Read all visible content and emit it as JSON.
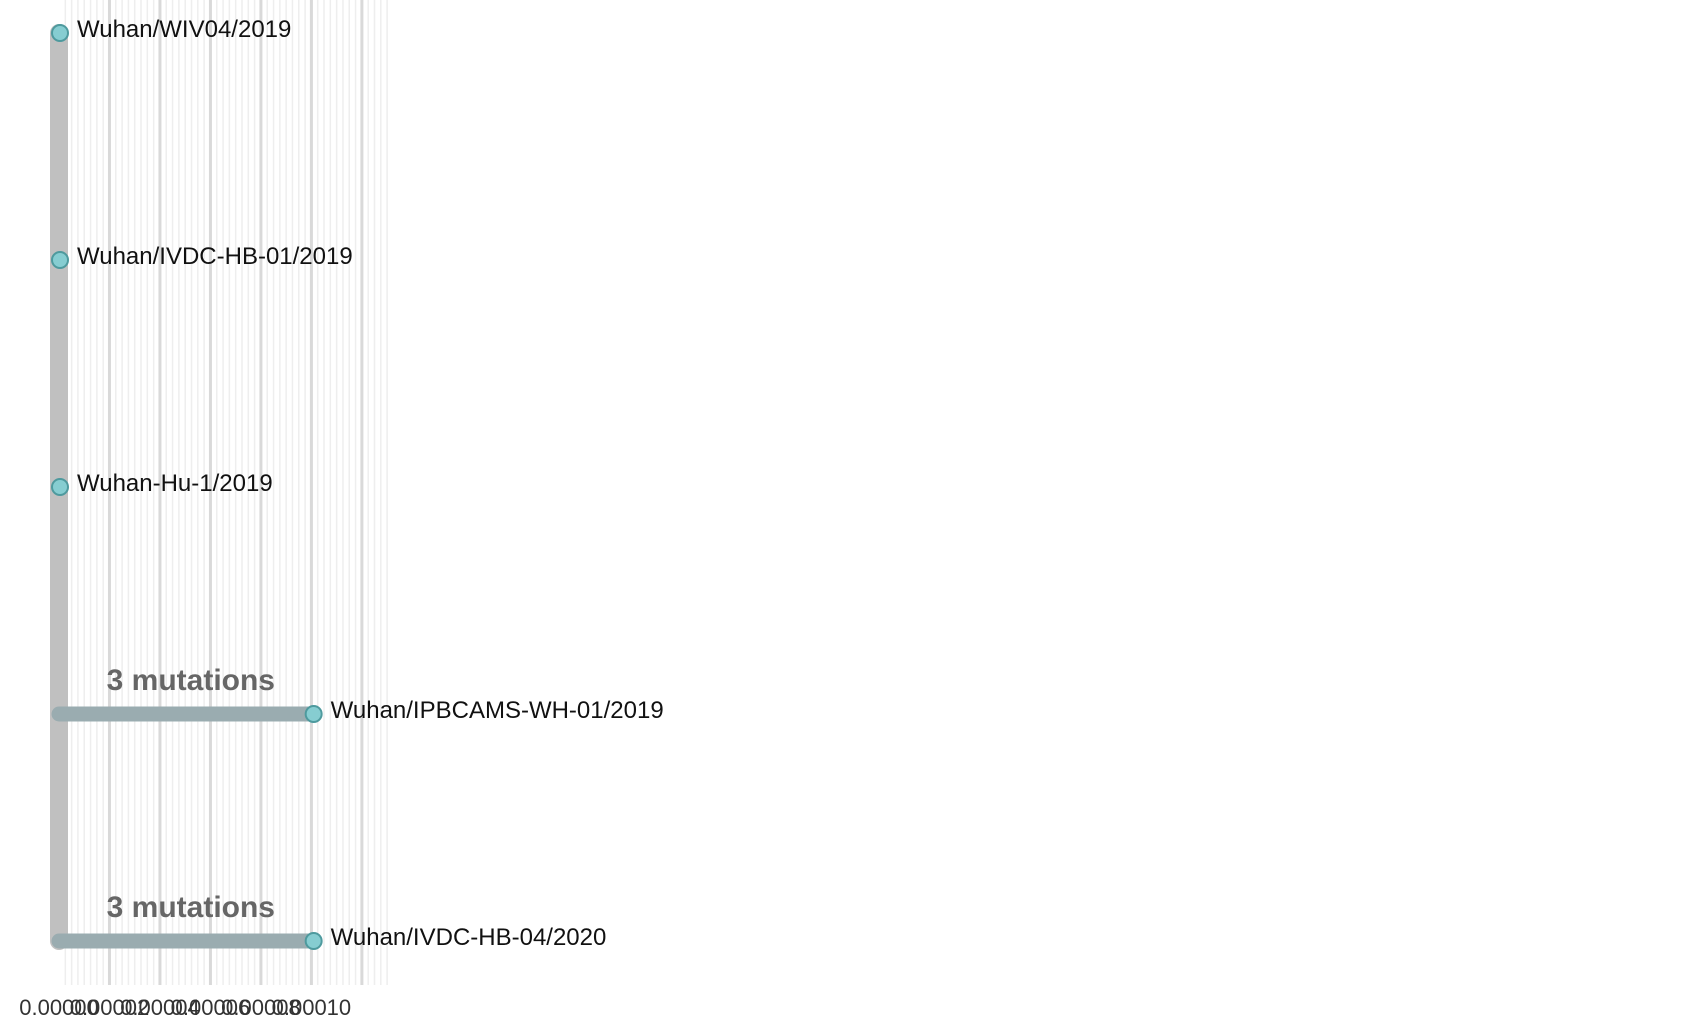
{
  "x_axis": {
    "ticks": [
      "0.00000",
      "0.00002",
      "0.00004",
      "0.00006",
      "0.00008",
      "0.00010"
    ]
  },
  "tips": [
    {
      "name": "Wuhan/WIV04/2019",
      "divergence": 0
    },
    {
      "name": "Wuhan/IVDC-HB-01/2019",
      "divergence": 0
    },
    {
      "name": "Wuhan-Hu-1/2019",
      "divergence": 0
    },
    {
      "name": "Wuhan/IPBCAMS-WH-01/2019",
      "divergence": 0.0001005,
      "mutation_label": "3 mutations"
    },
    {
      "name": "Wuhan/IVDC-HB-04/2020",
      "divergence": 0.0001005,
      "mutation_label": "3 mutations"
    }
  ],
  "colors": {
    "trunk": "#c0c0c0",
    "branch": "#9aacb0",
    "tip_fill": "#86cdd1",
    "tip_stroke": "#4e9a9e",
    "grid_major": "#d9d9d9",
    "grid_minor": "#eeeeee"
  }
}
